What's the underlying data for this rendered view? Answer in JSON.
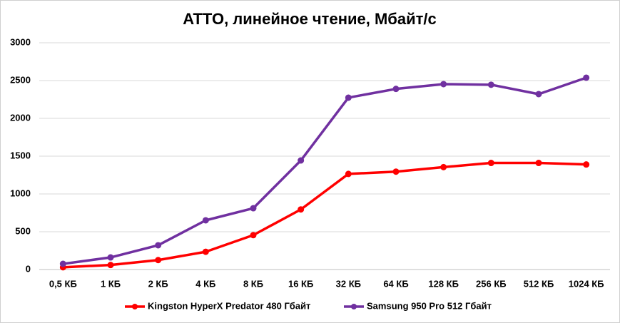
{
  "chart_data": {
    "type": "line",
    "title": "ATTO, линейное чтение, Мбайт/с",
    "categories": [
      "0,5 КБ",
      "1 КБ",
      "2 КБ",
      "4 КБ",
      "8 КБ",
      "16 КБ",
      "32 КБ",
      "64 КБ",
      "128 КБ",
      "256 КБ",
      "512 КБ",
      "1024 КБ"
    ],
    "series": [
      {
        "name": "Kingston HyperX Predator 480 Гбайт",
        "color": "#ff0000",
        "values": [
          30,
          60,
          125,
          235,
          455,
          795,
          1265,
          1295,
          1355,
          1410,
          1410,
          1390
        ]
      },
      {
        "name": "Samsung 950 Pro 512 Гбайт",
        "color": "#7030a0",
        "values": [
          75,
          160,
          321,
          651,
          811,
          1443,
          2274,
          2390,
          2453,
          2445,
          2321,
          2538
        ]
      }
    ],
    "ylim": [
      0,
      3000
    ],
    "yticks": [
      0,
      500,
      1000,
      1500,
      2000,
      2500,
      3000
    ],
    "grid": true,
    "legend": "bottom"
  }
}
